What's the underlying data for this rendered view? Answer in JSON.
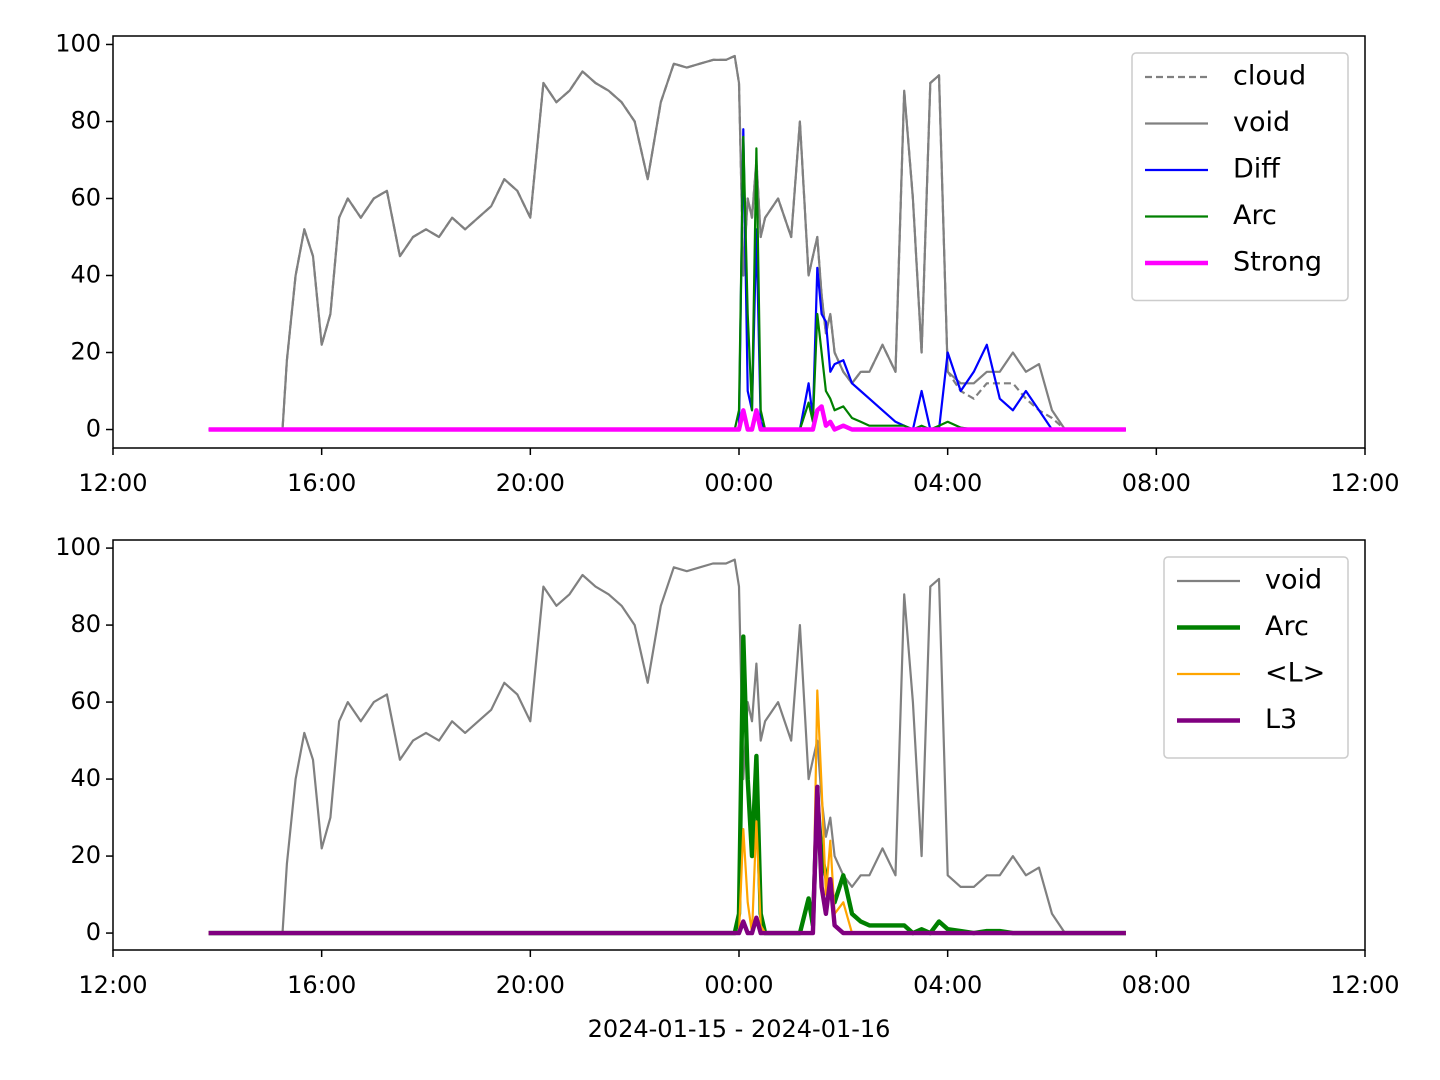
{
  "chart_data": [
    {
      "type": "line",
      "x": [
        "2024-01-15 13:50",
        "2024-01-15 14:30",
        "2024-01-15 15:15",
        "2024-01-15 15:20",
        "2024-01-15 15:30",
        "2024-01-15 15:40",
        "2024-01-15 15:50",
        "2024-01-15 16:00",
        "2024-01-15 16:10",
        "2024-01-15 16:20",
        "2024-01-15 16:30",
        "2024-01-15 16:45",
        "2024-01-15 17:00",
        "2024-01-15 17:15",
        "2024-01-15 17:30",
        "2024-01-15 17:45",
        "2024-01-15 18:00",
        "2024-01-15 18:15",
        "2024-01-15 18:30",
        "2024-01-15 18:45",
        "2024-01-15 19:00",
        "2024-01-15 19:15",
        "2024-01-15 19:30",
        "2024-01-15 19:45",
        "2024-01-15 20:00",
        "2024-01-15 20:15",
        "2024-01-15 20:30",
        "2024-01-15 20:45",
        "2024-01-15 21:00",
        "2024-01-15 21:15",
        "2024-01-15 21:30",
        "2024-01-15 21:45",
        "2024-01-15 22:00",
        "2024-01-15 22:15",
        "2024-01-15 22:30",
        "2024-01-15 22:45",
        "2024-01-15 23:00",
        "2024-01-15 23:15",
        "2024-01-15 23:30",
        "2024-01-15 23:45",
        "2024-01-15 23:55",
        "2024-01-16 00:00",
        "2024-01-16 00:05",
        "2024-01-16 00:10",
        "2024-01-16 00:15",
        "2024-01-16 00:20",
        "2024-01-16 00:25",
        "2024-01-16 00:30",
        "2024-01-16 00:45",
        "2024-01-16 01:00",
        "2024-01-16 01:10",
        "2024-01-16 01:20",
        "2024-01-16 01:25",
        "2024-01-16 01:30",
        "2024-01-16 01:35",
        "2024-01-16 01:40",
        "2024-01-16 01:45",
        "2024-01-16 01:50",
        "2024-01-16 02:00",
        "2024-01-16 02:10",
        "2024-01-16 02:20",
        "2024-01-16 02:30",
        "2024-01-16 02:45",
        "2024-01-16 03:00",
        "2024-01-16 03:10",
        "2024-01-16 03:20",
        "2024-01-16 03:30",
        "2024-01-16 03:40",
        "2024-01-16 03:50",
        "2024-01-16 04:00",
        "2024-01-16 04:15",
        "2024-01-16 04:30",
        "2024-01-16 04:45",
        "2024-01-16 05:00",
        "2024-01-16 05:15",
        "2024-01-16 05:30",
        "2024-01-16 05:45",
        "2024-01-16 06:00",
        "2024-01-16 06:15",
        "2024-01-16 06:30",
        "2024-01-16 07:25"
      ],
      "series": [
        {
          "name": "cloud",
          "color": "#808080",
          "dash": true,
          "linewidth": 1,
          "values": [
            0,
            0,
            0,
            18,
            40,
            52,
            45,
            22,
            30,
            55,
            60,
            55,
            60,
            62,
            45,
            50,
            52,
            50,
            55,
            52,
            55,
            58,
            65,
            62,
            55,
            90,
            85,
            88,
            93,
            90,
            88,
            85,
            80,
            65,
            85,
            95,
            94,
            95,
            96,
            96,
            97,
            90,
            40,
            60,
            55,
            70,
            50,
            55,
            60,
            50,
            80,
            40,
            45,
            50,
            35,
            25,
            30,
            20,
            15,
            12,
            15,
            15,
            22,
            15,
            88,
            60,
            20,
            90,
            92,
            15,
            10,
            8,
            12,
            12,
            12,
            8,
            5,
            3,
            0,
            0,
            0
          ]
        },
        {
          "name": "void",
          "color": "#808080",
          "linewidth": 1,
          "values": [
            0,
            0,
            0,
            18,
            40,
            52,
            45,
            22,
            30,
            55,
            60,
            55,
            60,
            62,
            45,
            50,
            52,
            50,
            55,
            52,
            55,
            58,
            65,
            62,
            55,
            90,
            85,
            88,
            93,
            90,
            88,
            85,
            80,
            65,
            85,
            95,
            94,
            95,
            96,
            96,
            97,
            90,
            40,
            60,
            55,
            70,
            50,
            55,
            60,
            50,
            80,
            40,
            45,
            50,
            35,
            25,
            30,
            20,
            15,
            12,
            15,
            15,
            22,
            15,
            88,
            60,
            20,
            90,
            92,
            15,
            12,
            12,
            15,
            15,
            20,
            15,
            17,
            5,
            0,
            0,
            0
          ]
        },
        {
          "name": "Diff",
          "color": "#0000ff",
          "linewidth": 1,
          "values": [
            0,
            0,
            0,
            0,
            0,
            0,
            0,
            0,
            0,
            0,
            0,
            0,
            0,
            0,
            0,
            0,
            0,
            0,
            0,
            0,
            0,
            0,
            0,
            0,
            0,
            0,
            0,
            0,
            0,
            0,
            0,
            0,
            0,
            0,
            0,
            0,
            0,
            0,
            0,
            0,
            0,
            0,
            78,
            10,
            5,
            52,
            2,
            0,
            0,
            0,
            0,
            12,
            3,
            42,
            30,
            28,
            15,
            17,
            18,
            12,
            10,
            8,
            5,
            2,
            1,
            0,
            10,
            0,
            0,
            20,
            10,
            15,
            22,
            8,
            5,
            10,
            5,
            0,
            0,
            0,
            0
          ]
        },
        {
          "name": "Arc",
          "color": "#008000",
          "linewidth": 1,
          "values": [
            0,
            0,
            0,
            0,
            0,
            0,
            0,
            0,
            0,
            0,
            0,
            0,
            0,
            0,
            0,
            0,
            0,
            0,
            0,
            0,
            0,
            0,
            0,
            0,
            0,
            0,
            0,
            0,
            0,
            0,
            0,
            0,
            0,
            0,
            0,
            0,
            0,
            0,
            0,
            0,
            0,
            5,
            76,
            30,
            5,
            73,
            5,
            0,
            0,
            0,
            0,
            7,
            2,
            30,
            20,
            10,
            8,
            5,
            6,
            3,
            2,
            1,
            1,
            1,
            1,
            0,
            1,
            0,
            1,
            2,
            0.5,
            0,
            0,
            0,
            0,
            0,
            0,
            0,
            0,
            0,
            0
          ]
        },
        {
          "name": "Strong",
          "color": "#ff00ff",
          "linewidth": 2,
          "values": [
            0,
            0,
            0,
            0,
            0,
            0,
            0,
            0,
            0,
            0,
            0,
            0,
            0,
            0,
            0,
            0,
            0,
            0,
            0,
            0,
            0,
            0,
            0,
            0,
            0,
            0,
            0,
            0,
            0,
            0,
            0,
            0,
            0,
            0,
            0,
            0,
            0,
            0,
            0,
            0,
            0,
            0,
            5,
            0,
            0,
            5,
            0,
            0,
            0,
            0,
            0,
            0,
            0,
            5,
            6,
            1,
            2,
            0,
            1,
            0,
            0,
            0,
            0,
            0,
            0,
            0,
            0,
            0,
            0,
            0,
            0,
            0,
            0,
            0,
            0,
            0,
            0,
            0,
            0,
            0,
            0
          ]
        }
      ],
      "xlim": [
        "2024-01-15 12:00",
        "2024-01-16 12:00"
      ],
      "xticks": [
        {
          "value": "2024-01-15 12:00",
          "label": "12:00"
        },
        {
          "value": "2024-01-15 16:00",
          "label": "16:00"
        },
        {
          "value": "2024-01-15 20:00",
          "label": "20:00"
        },
        {
          "value": "2024-01-16 00:00",
          "label": "00:00"
        },
        {
          "value": "2024-01-16 04:00",
          "label": "04:00"
        },
        {
          "value": "2024-01-16 08:00",
          "label": "08:00"
        },
        {
          "value": "2024-01-16 12:00",
          "label": "12:00"
        }
      ],
      "ylim": [
        -4.8,
        102.2
      ],
      "yticks": [
        0,
        20,
        40,
        60,
        80,
        100
      ],
      "legend": "upper right"
    },
    {
      "type": "line",
      "x": [
        "2024-01-15 13:50",
        "2024-01-15 14:30",
        "2024-01-15 15:15",
        "2024-01-15 15:20",
        "2024-01-15 15:30",
        "2024-01-15 15:40",
        "2024-01-15 15:50",
        "2024-01-15 16:00",
        "2024-01-15 16:10",
        "2024-01-15 16:20",
        "2024-01-15 16:30",
        "2024-01-15 16:45",
        "2024-01-15 17:00",
        "2024-01-15 17:15",
        "2024-01-15 17:30",
        "2024-01-15 17:45",
        "2024-01-15 18:00",
        "2024-01-15 18:15",
        "2024-01-15 18:30",
        "2024-01-15 18:45",
        "2024-01-15 19:00",
        "2024-01-15 19:15",
        "2024-01-15 19:30",
        "2024-01-15 19:45",
        "2024-01-15 20:00",
        "2024-01-15 20:15",
        "2024-01-15 20:30",
        "2024-01-15 20:45",
        "2024-01-15 21:00",
        "2024-01-15 21:15",
        "2024-01-15 21:30",
        "2024-01-15 21:45",
        "2024-01-15 22:00",
        "2024-01-15 22:15",
        "2024-01-15 22:30",
        "2024-01-15 22:45",
        "2024-01-15 23:00",
        "2024-01-15 23:15",
        "2024-01-15 23:30",
        "2024-01-15 23:45",
        "2024-01-15 23:55",
        "2024-01-16 00:00",
        "2024-01-16 00:05",
        "2024-01-16 00:10",
        "2024-01-16 00:15",
        "2024-01-16 00:20",
        "2024-01-16 00:25",
        "2024-01-16 00:30",
        "2024-01-16 00:45",
        "2024-01-16 01:00",
        "2024-01-16 01:10",
        "2024-01-16 01:20",
        "2024-01-16 01:25",
        "2024-01-16 01:30",
        "2024-01-16 01:35",
        "2024-01-16 01:40",
        "2024-01-16 01:45",
        "2024-01-16 01:50",
        "2024-01-16 02:00",
        "2024-01-16 02:10",
        "2024-01-16 02:20",
        "2024-01-16 02:30",
        "2024-01-16 02:45",
        "2024-01-16 03:00",
        "2024-01-16 03:10",
        "2024-01-16 03:20",
        "2024-01-16 03:30",
        "2024-01-16 03:40",
        "2024-01-16 03:50",
        "2024-01-16 04:00",
        "2024-01-16 04:15",
        "2024-01-16 04:30",
        "2024-01-16 04:45",
        "2024-01-16 05:00",
        "2024-01-16 05:15",
        "2024-01-16 05:30",
        "2024-01-16 05:45",
        "2024-01-16 06:00",
        "2024-01-16 06:15",
        "2024-01-16 06:30",
        "2024-01-16 07:25"
      ],
      "series": [
        {
          "name": "void",
          "color": "#808080",
          "linewidth": 1,
          "values": [
            0,
            0,
            0,
            18,
            40,
            52,
            45,
            22,
            30,
            55,
            60,
            55,
            60,
            62,
            45,
            50,
            52,
            50,
            55,
            52,
            55,
            58,
            65,
            62,
            55,
            90,
            85,
            88,
            93,
            90,
            88,
            85,
            80,
            65,
            85,
            95,
            94,
            95,
            96,
            96,
            97,
            90,
            40,
            60,
            55,
            70,
            50,
            55,
            60,
            50,
            80,
            40,
            45,
            50,
            35,
            25,
            30,
            20,
            15,
            12,
            15,
            15,
            22,
            15,
            88,
            60,
            20,
            90,
            92,
            15,
            12,
            12,
            15,
            15,
            20,
            15,
            17,
            5,
            0,
            0,
            0
          ]
        },
        {
          "name": "Arc",
          "color": "#008000",
          "linewidth": 2,
          "values": [
            0,
            0,
            0,
            0,
            0,
            0,
            0,
            0,
            0,
            0,
            0,
            0,
            0,
            0,
            0,
            0,
            0,
            0,
            0,
            0,
            0,
            0,
            0,
            0,
            0,
            0,
            0,
            0,
            0,
            0,
            0,
            0,
            0,
            0,
            0,
            0,
            0,
            0,
            0,
            0,
            0,
            5,
            77,
            40,
            20,
            46,
            5,
            0,
            0,
            0,
            0,
            9,
            2,
            35,
            20,
            15,
            10,
            8,
            15,
            5,
            3,
            2,
            2,
            2,
            2,
            0,
            1,
            0,
            3,
            1,
            0.5,
            0,
            0.5,
            0.5,
            0,
            0,
            0,
            0,
            0,
            0,
            0
          ]
        },
        {
          "name": "<L>",
          "color": "#ffa500",
          "linewidth": 1,
          "values": [
            0,
            0,
            0,
            0,
            0,
            0,
            0,
            0,
            0,
            0,
            0,
            0,
            0,
            0,
            0,
            0,
            0,
            0,
            0,
            0,
            0,
            0,
            0,
            0,
            0,
            0,
            0,
            0,
            0,
            0,
            0,
            0,
            0,
            0,
            0,
            0,
            0,
            0,
            0,
            0,
            0,
            0,
            27,
            8,
            0,
            29,
            2,
            0,
            0,
            0,
            0,
            0,
            0,
            63,
            38,
            10,
            24,
            5,
            8,
            0,
            0,
            0,
            0,
            0,
            0,
            0,
            0,
            0,
            0,
            0,
            0,
            0,
            0,
            0,
            0,
            0,
            0,
            0,
            0,
            0,
            0
          ]
        },
        {
          "name": "L3",
          "color": "#800080",
          "linewidth": 2,
          "values": [
            0,
            0,
            0,
            0,
            0,
            0,
            0,
            0,
            0,
            0,
            0,
            0,
            0,
            0,
            0,
            0,
            0,
            0,
            0,
            0,
            0,
            0,
            0,
            0,
            0,
            0,
            0,
            0,
            0,
            0,
            0,
            0,
            0,
            0,
            0,
            0,
            0,
            0,
            0,
            0,
            0,
            0,
            3,
            0,
            0,
            4,
            0,
            0,
            0,
            0,
            0,
            0,
            0,
            38,
            12,
            5,
            14,
            2,
            0,
            0,
            0,
            0,
            0,
            0,
            0,
            0,
            0,
            0,
            0,
            0,
            0,
            0,
            0,
            0,
            0,
            0,
            0,
            0,
            0,
            0,
            0
          ]
        }
      ],
      "xlim": [
        "2024-01-15 12:00",
        "2024-01-16 12:00"
      ],
      "xticks": [
        {
          "value": "2024-01-15 12:00",
          "label": "12:00"
        },
        {
          "value": "2024-01-15 16:00",
          "label": "16:00"
        },
        {
          "value": "2024-01-15 20:00",
          "label": "20:00"
        },
        {
          "value": "2024-01-16 00:00",
          "label": "00:00"
        },
        {
          "value": "2024-01-16 04:00",
          "label": "04:00"
        },
        {
          "value": "2024-01-16 08:00",
          "label": "08:00"
        },
        {
          "value": "2024-01-16 12:00",
          "label": "12:00"
        }
      ],
      "ylim": [
        -4.4,
        102.1
      ],
      "yticks": [
        0,
        20,
        40,
        60,
        80,
        100
      ],
      "legend": "upper right",
      "xlabel": "2024-01-15 - 2024-01-16"
    }
  ]
}
